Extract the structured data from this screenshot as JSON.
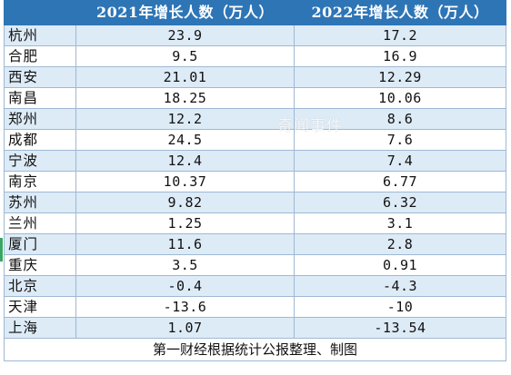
{
  "table": {
    "headers": [
      "",
      "2021年增长人数（万人）",
      "2022年增长人数（万人）"
    ],
    "rows": [
      {
        "city": "杭州",
        "y2021": "23.9",
        "y2022": "17.2"
      },
      {
        "city": "合肥",
        "y2021": "9.5",
        "y2022": "16.9"
      },
      {
        "city": "西安",
        "y2021": "21.01",
        "y2022": "12.29"
      },
      {
        "city": "南昌",
        "y2021": "18.25",
        "y2022": "10.06"
      },
      {
        "city": "郑州",
        "y2021": "12.2",
        "y2022": "8.6"
      },
      {
        "city": "成都",
        "y2021": "24.5",
        "y2022": "7.6"
      },
      {
        "city": "宁波",
        "y2021": "12.4",
        "y2022": "7.4"
      },
      {
        "city": "南京",
        "y2021": "10.37",
        "y2022": "6.77"
      },
      {
        "city": "苏州",
        "y2021": "9.82",
        "y2022": "6.32"
      },
      {
        "city": "兰州",
        "y2021": "1.25",
        "y2022": "3.1"
      },
      {
        "city": "厦门",
        "y2021": "11.6",
        "y2022": "2.8"
      },
      {
        "city": "重庆",
        "y2021": "3.5",
        "y2022": "0.91"
      },
      {
        "city": "北京",
        "y2021": "-0.4",
        "y2022": "-4.3"
      },
      {
        "city": "天津",
        "y2021": "-13.6",
        "y2022": "-10"
      },
      {
        "city": "上海",
        "y2021": "1.07",
        "y2022": "-13.54"
      }
    ],
    "footer": "第一财经根据统计公报整理、制图"
  },
  "watermark": "奇闻事件",
  "colors": {
    "header_bg": "#2e75b6",
    "band_bg": "#ddebf7",
    "border": "#9fb8d3"
  }
}
